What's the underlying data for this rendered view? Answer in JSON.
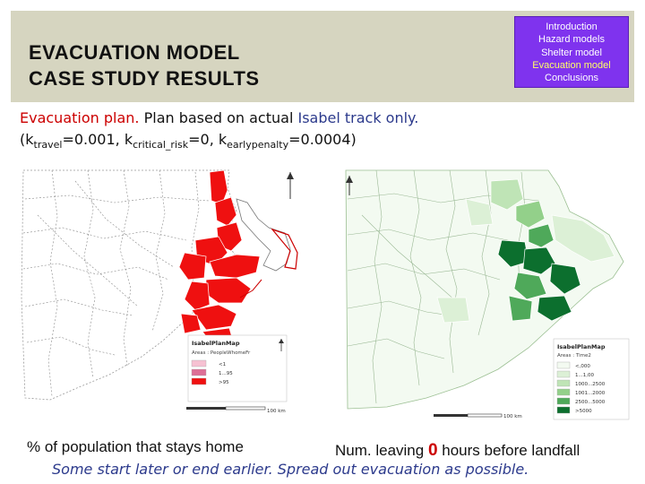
{
  "title": {
    "line1": "EVACUATION MODEL",
    "line2": "CASE STUDY RESULTS"
  },
  "nav": {
    "items": [
      "Introduction",
      "Hazard models",
      "Shelter model",
      "Evacuation model",
      "Conclusions"
    ],
    "active_index": 3
  },
  "subtitle": {
    "plan_label": "Evacuation plan.",
    "text_prefix": "Plan based on actual ",
    "track": "Isabel track only."
  },
  "params": {
    "open": "(k",
    "travel_sub": "travel",
    "travel_val": "=0.001, k",
    "risk_sub": "critical_risk",
    "risk_val": "=0, k",
    "early_sub": "earlypenalty",
    "early_val": "=0.0004)"
  },
  "map_left": {
    "legend_title": "IsabelPlanMap",
    "legend_subtitle": "Areas : PeopleWhomeFr",
    "legend_items": [
      "<1",
      "1...95",
      ">95"
    ],
    "legend_colors": [
      "#f6c1d2",
      "#dd6f96",
      "#ef1010"
    ],
    "scale_label": "100 km",
    "north": "N"
  },
  "map_right": {
    "legend_title": "IsabelPlanMap",
    "legend_subtitle": "Areas : Time2",
    "legend_items": [
      "<,000",
      "1...1,00",
      "1000...2500",
      "1001...2000",
      "2500...5000",
      ">5000"
    ],
    "legend_colors": [
      "#f3faf1",
      "#dcf0d6",
      "#bfe4b6",
      "#93d08a",
      "#4fa95a",
      "#0c6f2e"
    ],
    "scale_label": "100 km",
    "north": "N"
  },
  "captions": {
    "left": "% of population that stays home",
    "right_prefix": "Num. leaving ",
    "right_num": "0",
    "right_suffix": " hours before landfall"
  },
  "footer": "Some start later or end earlier. Spread out evacuation as possible.",
  "colors": {
    "nav_bg": "#7f33ee",
    "nav_active": "#ffff66",
    "accent_red": "#cc0000",
    "header_band": "#d6d5c0"
  }
}
